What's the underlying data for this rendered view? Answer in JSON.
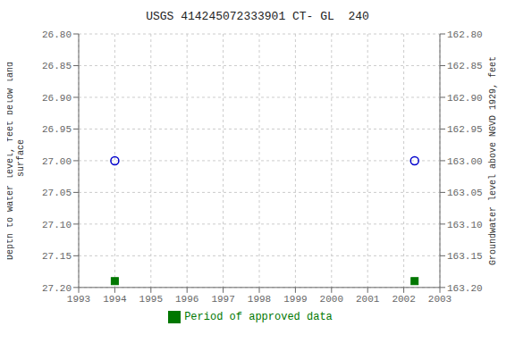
{
  "chart_data": {
    "type": "scatter",
    "title": "USGS 414245072333901 CT- GL  240",
    "ylabel": "Depth to water level, feet below land\n surface",
    "y2label": "Groundwater level above NGVD 1929, feet",
    "xlim": [
      1993,
      2003
    ],
    "xticks": [
      1993,
      1994,
      1995,
      1996,
      1997,
      1998,
      1999,
      2000,
      2001,
      2002,
      2003
    ],
    "ylim": [
      27.2,
      26.8
    ],
    "yticks": [
      {
        "value": 26.8,
        "label": "26.80"
      },
      {
        "value": 26.85,
        "label": "26.85"
      },
      {
        "value": 26.9,
        "label": "26.90"
      },
      {
        "value": 26.95,
        "label": "26.95"
      },
      {
        "value": 27.0,
        "label": "27.00"
      },
      {
        "value": 27.05,
        "label": "27.05"
      },
      {
        "value": 27.1,
        "label": "27.10"
      },
      {
        "value": 27.15,
        "label": "27.15"
      },
      {
        "value": 27.2,
        "label": "27.20"
      }
    ],
    "y2lim": [
      163.2,
      162.8
    ],
    "y2ticks": [
      {
        "value": 163.2,
        "label": "163.20"
      },
      {
        "value": 163.15,
        "label": "163.15"
      },
      {
        "value": 163.1,
        "label": "163.10"
      },
      {
        "value": 163.05,
        "label": "163.05"
      },
      {
        "value": 163.0,
        "label": "163.00"
      },
      {
        "value": 162.95,
        "label": "162.95"
      },
      {
        "value": 162.9,
        "label": "162.90"
      },
      {
        "value": 162.85,
        "label": "162.85"
      },
      {
        "value": 162.8,
        "label": "162.80"
      }
    ],
    "grid": true,
    "legend": "bottom",
    "series": [
      {
        "x": [
          1994.0,
          2002.3
        ],
        "values": [
          27.0,
          27.0
        ],
        "color": "#0000cc",
        "marker": "circle"
      },
      {
        "name": "Period of approved data",
        "x": [
          1994.0,
          2002.3
        ],
        "values": [
          27.19,
          27.19
        ],
        "color": "#007700",
        "marker": "square"
      }
    ]
  }
}
